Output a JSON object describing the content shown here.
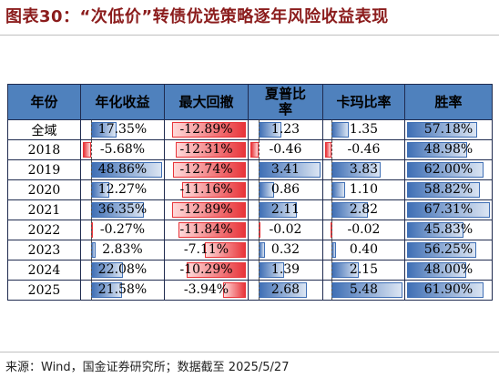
{
  "title": "图表30：“次低价”转债优选策略逐年风险收益表现",
  "source": "来源：Wind，国金证券研究所；数据截至 2025/5/27",
  "headers": [
    "年份",
    "年化收益",
    "最大回撤",
    "夏普比率",
    "卡玛比率",
    "胜率"
  ],
  "colors": {
    "header_bg": "#4f81bd",
    "bar_blue": "#3f6fb5",
    "bar_red": "#e8353a",
    "title": "#8b1c1c"
  },
  "rows": [
    {
      "year": "全域",
      "ret": "17.35%",
      "mdd": "-12.89%",
      "sharpe": "1.23",
      "calmar": "1.35",
      "win": "57.18%"
    },
    {
      "year": "2018",
      "ret": "-5.68%",
      "mdd": "-12.31%",
      "sharpe": "-0.46",
      "calmar": "-0.46",
      "win": "48.98%"
    },
    {
      "year": "2019",
      "ret": "48.86%",
      "mdd": "-12.74%",
      "sharpe": "3.41",
      "calmar": "3.83",
      "win": "62.00%"
    },
    {
      "year": "2020",
      "ret": "12.27%",
      "mdd": "-11.16%",
      "sharpe": "0.86",
      "calmar": "1.10",
      "win": "58.82%"
    },
    {
      "year": "2021",
      "ret": "36.35%",
      "mdd": "-12.89%",
      "sharpe": "2.11",
      "calmar": "2.82",
      "win": "67.31%"
    },
    {
      "year": "2022",
      "ret": "-0.27%",
      "mdd": "-11.84%",
      "sharpe": "-0.02",
      "calmar": "-0.02",
      "win": "45.83%"
    },
    {
      "year": "2023",
      "ret": "2.83%",
      "mdd": "-7.11%",
      "sharpe": "0.32",
      "calmar": "0.40",
      "win": "56.25%"
    },
    {
      "year": "2024",
      "ret": "22.08%",
      "mdd": "-10.29%",
      "sharpe": "1.39",
      "calmar": "2.15",
      "win": "48.00%"
    },
    {
      "year": "2025",
      "ret": "21.58%",
      "mdd": "-3.94%",
      "sharpe": "2.68",
      "calmar": "5.48",
      "win": "61.90%"
    }
  ]
}
